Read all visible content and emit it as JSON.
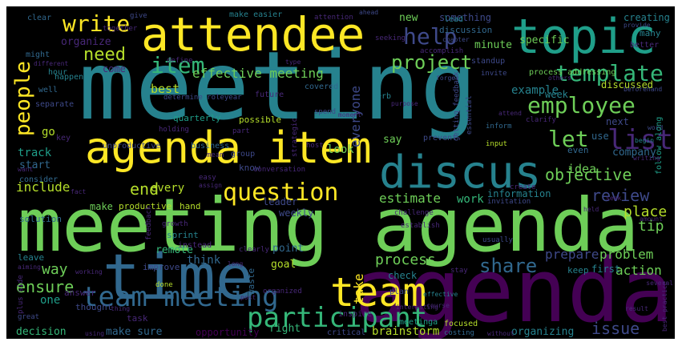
{
  "words": [
    "meeting",
    "meeting agenda",
    "agenda",
    "time",
    "attendee",
    "topic",
    "agenda item",
    "discus",
    "team",
    "team meeting",
    "participant",
    "write",
    "help",
    "employee",
    "template",
    "project",
    "people",
    "list",
    "item",
    "need",
    "question",
    "objective",
    "let",
    "end",
    "review",
    "share",
    "issue",
    "ensure",
    "effective meeting",
    "best",
    "include",
    "estimate",
    "place",
    "tip",
    "process",
    "prepare",
    "problem",
    "action",
    "example",
    "week",
    "company",
    "idea",
    "look",
    "say",
    "think",
    "remote",
    "way",
    "one",
    "decision",
    "make sure",
    "brainstorm",
    "organizing",
    "goal",
    "point",
    "everyone",
    "take",
    "go",
    "track",
    "start",
    "organize",
    "come",
    "discussed",
    "minute",
    "something",
    "specific",
    "new",
    "discussion",
    "creating",
    "many",
    "better",
    "work",
    "information",
    "use",
    "even",
    "next",
    "first",
    "keep",
    "right",
    "opportunity",
    "leader",
    "weekly",
    "every",
    "make",
    "answer",
    "sprint",
    "plan",
    "check",
    "critical",
    "meetinga",
    "focused",
    "costing",
    "inspire",
    "waste",
    "organized",
    "improve",
    "hand",
    "productive",
    "solution",
    "consider",
    "possible",
    "quarterly",
    "business",
    "unproductive",
    "holding",
    "future",
    "covered",
    "determine roleyear",
    "process addressing",
    "standup",
    "accomplish",
    "chapter",
    "lead",
    "seeking",
    "attention",
    "make easier",
    "together",
    "give",
    "clear",
    "provide",
    "might",
    "different",
    "hour",
    "well",
    "separate",
    "happen",
    "verb",
    "forget",
    "invite",
    "purpose",
    "getting feedback",
    "essential",
    "prevent",
    "input",
    "inform",
    "clarify",
    "attend",
    "begin",
    "word",
    "follow along",
    "beforehand",
    "ahead",
    "others",
    "writing",
    "host",
    "moment",
    "strategic",
    "spend",
    "part",
    "type",
    "define",
    "key",
    "want",
    "fact",
    "group",
    "know",
    "conversation",
    "easy",
    "assign",
    "create",
    "invitation",
    "challenge",
    "establish",
    "seek",
    "held",
    "amount",
    "several",
    "best practice",
    "without",
    "result",
    "stay",
    "usually",
    "mean",
    "feedback",
    "growth",
    "instead",
    "clearly",
    "long",
    "post",
    "done",
    "effective",
    "course",
    "interesting",
    "aiming",
    "working",
    "thought",
    "task",
    "leave",
    "plus side",
    "great",
    "thing",
    "using"
  ]
}
